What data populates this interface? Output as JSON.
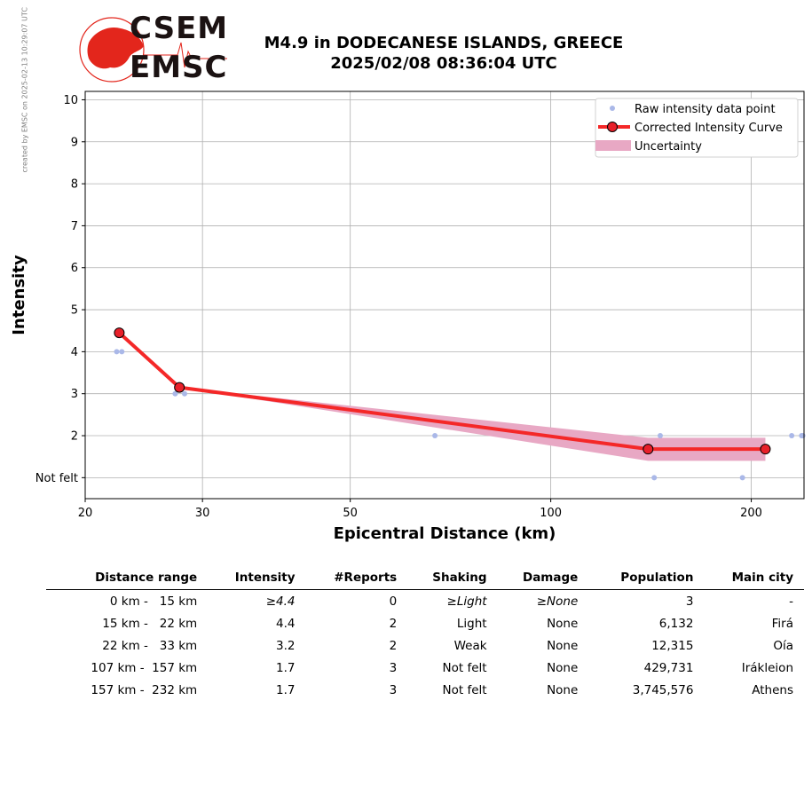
{
  "side_note": "created by EMSC on 2025-02-13 10:29:07 UTC",
  "logo": {
    "line1": "CSEM",
    "line2": "EMSC",
    "accent": "#e3261c"
  },
  "title": {
    "line1": "M4.9 in DODECANESE ISLANDS, GREECE",
    "line2": "2025/02/08 08:36:04 UTC"
  },
  "chart_data": {
    "type": "line",
    "xlabel": "Epicentral Distance (km)",
    "ylabel": "Intensity",
    "x_scale": "log",
    "xlim": [
      20,
      240
    ],
    "ylim": [
      0.5,
      10.2
    ],
    "x_ticks": [
      20,
      30,
      50,
      100,
      200
    ],
    "y_ticks": [
      1,
      2,
      3,
      4,
      5,
      6,
      7,
      8,
      9,
      10
    ],
    "y_tick_labels": [
      "Not felt",
      "2",
      "3",
      "4",
      "5",
      "6",
      "7",
      "8",
      "9",
      "10"
    ],
    "grid": true,
    "legend_position": "top-right",
    "colors": {
      "raw": "#aab8e8",
      "curve": "#f42828",
      "marker": "#e8202a",
      "uncertainty": "#e8a8c4"
    },
    "series": [
      {
        "name": "Raw intensity data point",
        "type": "scatter",
        "points": [
          [
            22.3,
            4
          ],
          [
            22.7,
            4
          ],
          [
            27.3,
            3
          ],
          [
            28.2,
            3
          ],
          [
            67,
            2
          ],
          [
            143,
            1
          ],
          [
            146,
            2
          ],
          [
            194,
            1
          ],
          [
            230,
            2
          ],
          [
            238,
            2
          ],
          [
            239,
            2
          ]
        ]
      },
      {
        "name": "Corrected Intensity Curve",
        "type": "line",
        "points": [
          [
            22.5,
            4.45
          ],
          [
            27.7,
            3.15
          ],
          [
            140,
            1.68
          ],
          [
            210,
            1.68
          ]
        ]
      },
      {
        "name": "Uncertainty",
        "type": "band",
        "upper": [
          [
            27.7,
            3.15
          ],
          [
            140,
            1.95
          ],
          [
            210,
            1.95
          ]
        ],
        "lower": [
          [
            27.7,
            3.15
          ],
          [
            140,
            1.4
          ],
          [
            210,
            1.4
          ]
        ]
      }
    ]
  },
  "table": {
    "headers": [
      "Distance range",
      "Intensity",
      "#Reports",
      "Shaking",
      "Damage",
      "Population",
      "Main city"
    ],
    "rows": [
      [
        "0 km -   15 km",
        "≥4.4",
        "0",
        "≥Light",
        "≥None",
        "3",
        "-"
      ],
      [
        "15 km -   22 km",
        "4.4",
        "2",
        "Light",
        "None",
        "6,132",
        "Firá"
      ],
      [
        "22 km -   33 km",
        "3.2",
        "2",
        "Weak",
        "None",
        "12,315",
        "Oía"
      ],
      [
        "107 km -  157 km",
        "1.7",
        "3",
        "Not felt",
        "None",
        "429,731",
        "Irákleion"
      ],
      [
        "157 km -  232 km",
        "1.7",
        "3",
        "Not felt",
        "None",
        "3,745,576",
        "Athens"
      ]
    ]
  }
}
